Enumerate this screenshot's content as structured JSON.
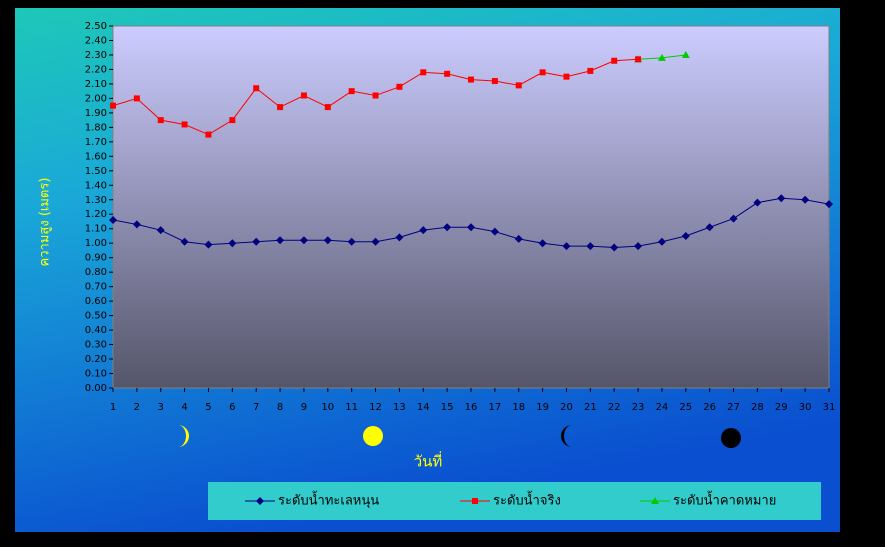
{
  "chart_data": {
    "type": "line",
    "y_axis_label": "ความสูง (เมตร)",
    "x_axis_label": "วันที่",
    "categories": [
      "1",
      "2",
      "3",
      "4",
      "5",
      "6",
      "7",
      "8",
      "9",
      "10",
      "11",
      "12",
      "13",
      "14",
      "15",
      "16",
      "17",
      "18",
      "19",
      "20",
      "21",
      "22",
      "23",
      "24",
      "25",
      "26",
      "27",
      "28",
      "29",
      "30",
      "31"
    ],
    "ylim": [
      0,
      2.5
    ],
    "yticks": [
      {
        "value": 0,
        "label": "0.00"
      },
      {
        "value": 0.1,
        "label": "0.10"
      },
      {
        "value": 0.2,
        "label": "0.20"
      },
      {
        "value": 0.3,
        "label": "0.30"
      },
      {
        "value": 0.4,
        "label": "0.40"
      },
      {
        "value": 0.5,
        "label": "0.50"
      },
      {
        "value": 0.6,
        "label": "0.60"
      },
      {
        "value": 0.7,
        "label": "0.70"
      },
      {
        "value": 0.8,
        "label": "0.80"
      },
      {
        "value": 0.9,
        "label": "0.90"
      },
      {
        "value": 1,
        "label": "1.00"
      },
      {
        "value": 1.1,
        "label": "1.10"
      },
      {
        "value": 1.2,
        "label": "1.20"
      },
      {
        "value": 1.3,
        "label": "1.30"
      },
      {
        "value": 1.4,
        "label": "1.40"
      },
      {
        "value": 1.5,
        "label": "1.50"
      },
      {
        "value": 1.6,
        "label": "1.60"
      },
      {
        "value": 1.7,
        "label": "1.70"
      },
      {
        "value": 1.8,
        "label": "1.80"
      },
      {
        "value": 1.9,
        "label": "1.90"
      },
      {
        "value": 2,
        "label": "2.00"
      },
      {
        "value": 2.1,
        "label": "2.10"
      },
      {
        "value": 2.2,
        "label": "2.20"
      },
      {
        "value": 2.3,
        "label": "2.30"
      },
      {
        "value": 2.4,
        "label": "2.40"
      },
      {
        "value": 2.5,
        "label": "2.50"
      }
    ],
    "series": [
      {
        "name": "ระดับน้ำทะเลหนุน",
        "color": "#000080",
        "marker": "diamond",
        "values": [
          1.16,
          1.13,
          1.09,
          1.01,
          0.99,
          1.0,
          1.01,
          1.02,
          1.02,
          1.02,
          1.01,
          1.01,
          1.04,
          1.09,
          1.11,
          1.11,
          1.08,
          1.03,
          1.0,
          0.98,
          0.98,
          0.97,
          0.98,
          1.01,
          1.05,
          1.11,
          1.17,
          1.28,
          1.31,
          1.3,
          1.27
        ]
      },
      {
        "name": "ระดับน้ำจริง",
        "color": "#ff0000",
        "marker": "square",
        "values": [
          1.95,
          2.0,
          1.85,
          1.82,
          1.75,
          1.85,
          2.07,
          1.94,
          2.02,
          1.94,
          2.05,
          2.02,
          2.08,
          2.18,
          2.17,
          2.13,
          2.12,
          2.09,
          2.18,
          2.15,
          2.19,
          2.26,
          2.27,
          null,
          null,
          null,
          null,
          null,
          null,
          null,
          null
        ]
      },
      {
        "name": "ระดับน้ำคาดหมาย",
        "color": "#00cc00",
        "marker": "triangle",
        "values": [
          null,
          null,
          null,
          null,
          null,
          null,
          null,
          null,
          null,
          null,
          null,
          null,
          null,
          null,
          null,
          null,
          null,
          null,
          null,
          null,
          null,
          null,
          2.27,
          2.28,
          2.3,
          null,
          null,
          null,
          null,
          null,
          null
        ]
      }
    ]
  }
}
